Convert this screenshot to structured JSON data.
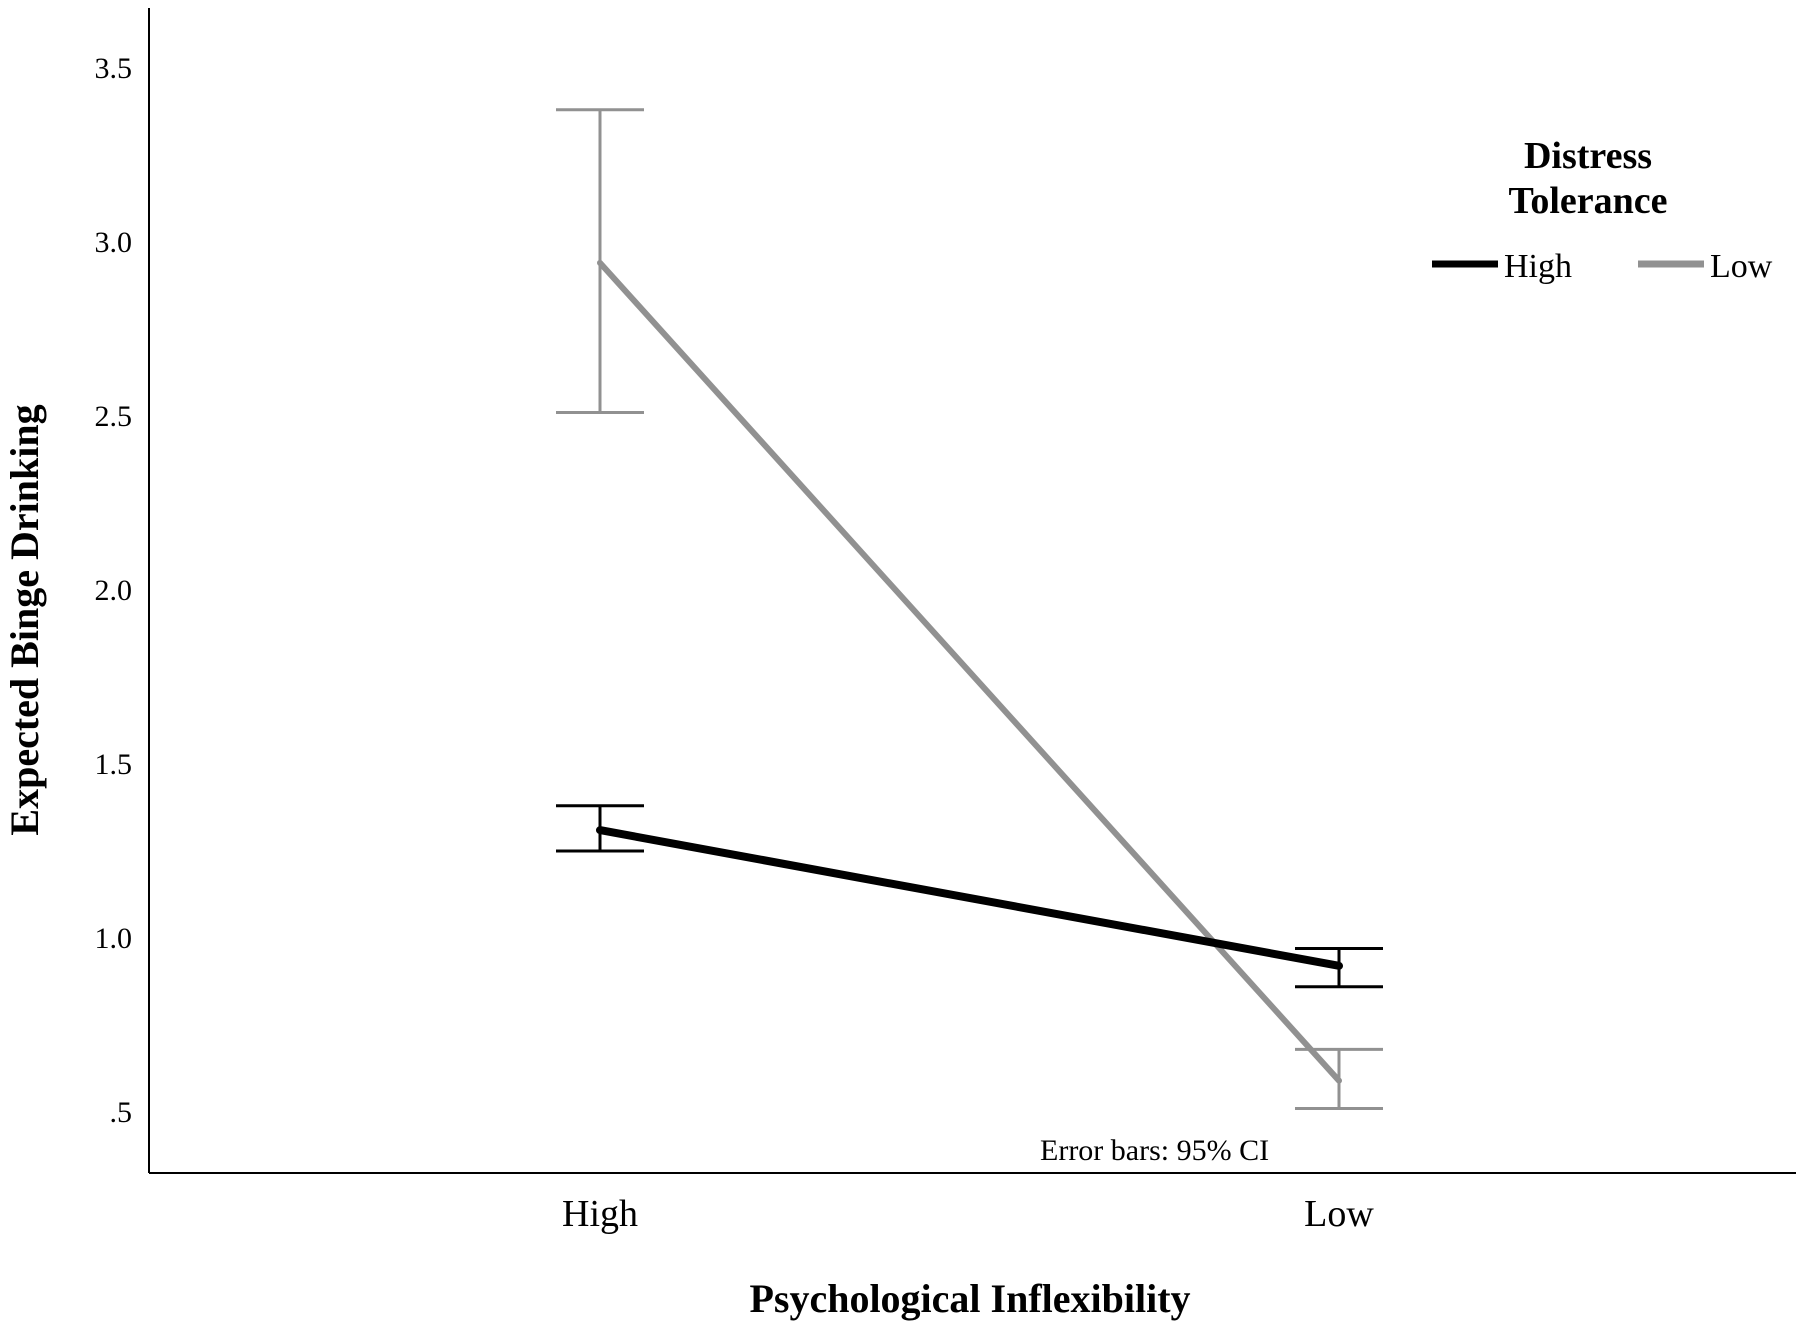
{
  "chart_data": {
    "type": "line",
    "title": "",
    "xlabel": "Psychological Inflexibility",
    "ylabel": "Expected Binge Drinking",
    "categories": [
      "High",
      "Low"
    ],
    "y_ticks": [
      {
        "value": 0.5,
        "label": ".5"
      },
      {
        "value": 1.0,
        "label": "1.0"
      },
      {
        "value": 1.5,
        "label": "1.5"
      },
      {
        "value": 2.0,
        "label": "2.0"
      },
      {
        "value": 2.5,
        "label": "2.5"
      },
      {
        "value": 3.0,
        "label": "3.0"
      },
      {
        "value": 3.5,
        "label": "3.5"
      }
    ],
    "ylim": [
      0.35,
      3.65
    ],
    "grid": false,
    "legend": {
      "title_line1": "Distress",
      "title_line2": "Tolerance",
      "placement": "top-right"
    },
    "series": [
      {
        "name": "High",
        "color": "#000000",
        "values": [
          1.31,
          0.92
        ],
        "ci_low": [
          1.25,
          0.86
        ],
        "ci_high": [
          1.38,
          0.97
        ]
      },
      {
        "name": "Low",
        "color": "#919191",
        "values": [
          2.94,
          0.59
        ],
        "ci_low": [
          2.51,
          0.51
        ],
        "ci_high": [
          3.38,
          0.68
        ]
      }
    ],
    "annotation": "Error bars: 95% CI"
  }
}
